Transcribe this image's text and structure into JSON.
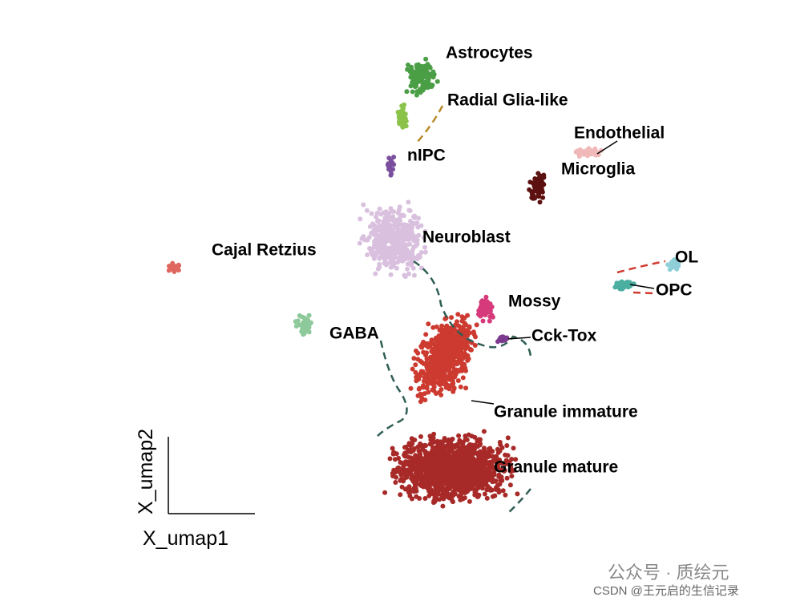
{
  "chart_data": {
    "type": "scatter",
    "x_label": "X_umap1",
    "y_label": "X_umap2",
    "series": [
      {
        "name": "Astrocytes",
        "color": "#4a9e45"
      },
      {
        "name": "Radial Glia-like",
        "color": "#8bc34a"
      },
      {
        "name": "nIPC",
        "color": "#7b4f9e"
      },
      {
        "name": "Endothelial",
        "color": "#f0b8b8"
      },
      {
        "name": "Microglia",
        "color": "#5c1010"
      },
      {
        "name": "Neuroblast",
        "color": "#d9c0de"
      },
      {
        "name": "Cajal Retzius",
        "color": "#e0675f"
      },
      {
        "name": "OL",
        "color": "#8ecfd8"
      },
      {
        "name": "OPC",
        "color": "#4aaea0"
      },
      {
        "name": "Mossy",
        "color": "#d63a7a"
      },
      {
        "name": "GABA",
        "color": "#8dc99a"
      },
      {
        "name": "Cck-Tox",
        "color": "#7b3a8e"
      },
      {
        "name": "Granule immature",
        "color": "#cc3a30"
      },
      {
        "name": "Granule mature",
        "color": "#a82a28"
      }
    ]
  },
  "watermark": {
    "account": "公众号 · 质绘元",
    "source": "CSDN @王元启的生信记录"
  }
}
